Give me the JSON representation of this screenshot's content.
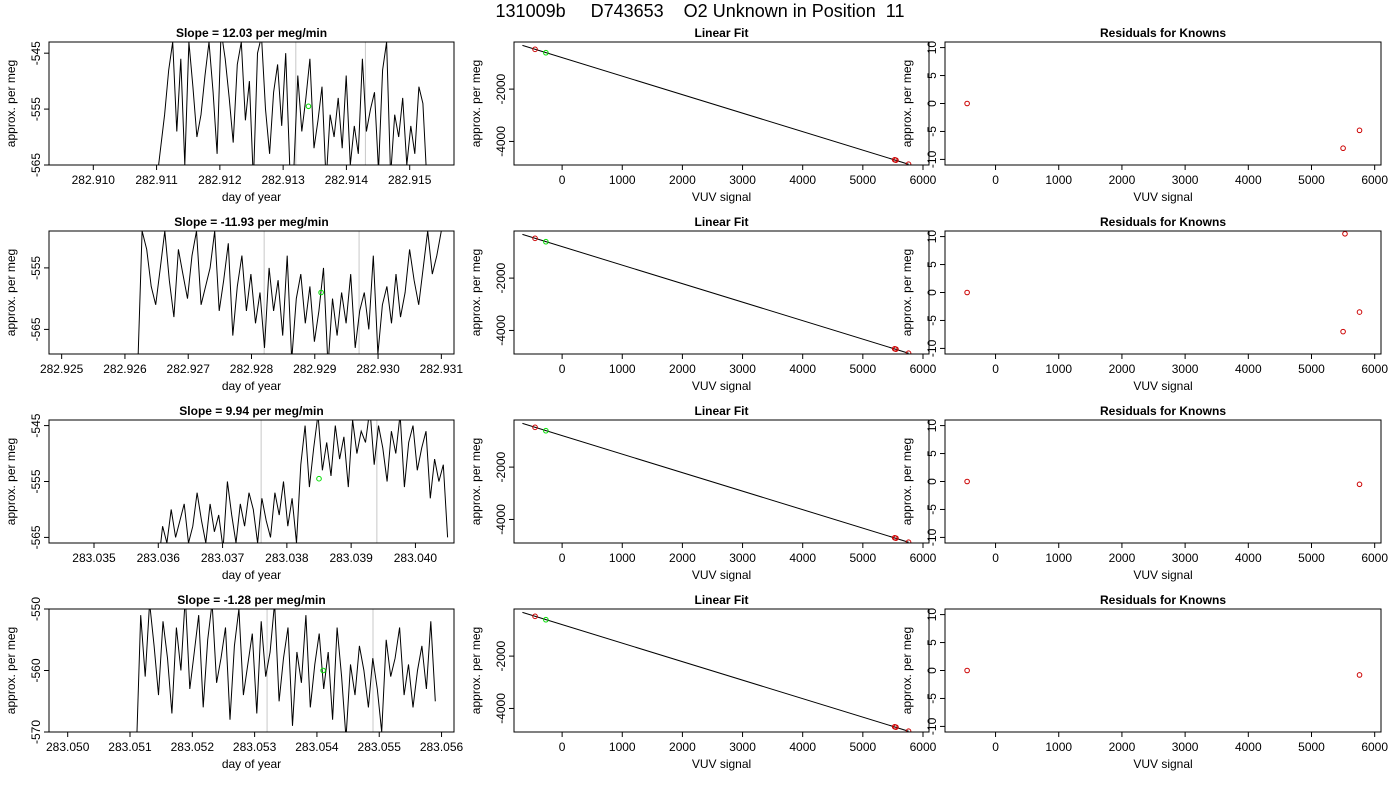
{
  "page": {
    "title": "131009b     D743653    O2 Unknown in Position  11"
  },
  "chart_data": [
    {
      "type": "line",
      "panel": "time",
      "row": 0,
      "title": "Slope =  12.03  per meg/min",
      "xlabel": "day of year",
      "ylabel": "approx. per meg",
      "xlim": [
        282.9093,
        282.9157
      ],
      "ylim": [
        -565,
        -543
      ],
      "xticks": [
        "282.910",
        "282.911",
        "282.912",
        "282.913",
        "282.914",
        "282.915"
      ],
      "xtick_values": [
        282.91,
        282.911,
        282.912,
        282.913,
        282.914,
        282.915
      ],
      "yticks": [
        "-565",
        "-555",
        "-545"
      ],
      "ytick_values": [
        -565,
        -555,
        -545
      ],
      "vlines": [
        282.9132,
        282.9143
      ],
      "marker": {
        "x": 282.9134,
        "y": -554.5,
        "color": "#00dd00"
      },
      "trace_start": 282.911,
      "trace_end": 282.9154,
      "series": [
        {
          "values": [
            -568,
            -562,
            -556,
            -548,
            -543,
            -559,
            -546,
            -565,
            -543,
            -551,
            -560,
            -556,
            -549,
            -543,
            -552,
            -563,
            -541,
            -546,
            -553,
            -561,
            -547,
            -543,
            -557,
            -550,
            -568,
            -545,
            -542,
            -555,
            -563,
            -552,
            -547,
            -558,
            -545,
            -565,
            -566,
            -549,
            -559,
            -553,
            -546,
            -562,
            -557,
            -551,
            -568,
            -556,
            -560,
            -553,
            -562,
            -549,
            -565,
            -558,
            -563,
            -546,
            -559,
            -555,
            -552,
            -566,
            -548,
            -543,
            -567,
            -556,
            -560,
            -553,
            -565,
            -558,
            -563,
            -551,
            -554,
            -568,
            -566,
            -571
          ]
        }
      ]
    },
    {
      "type": "scatter",
      "panel": "fit",
      "row": 0,
      "title": "Linear Fit",
      "xlabel": "VUV signal",
      "ylabel": "approx. per meg",
      "xlim": [
        -800,
        6100
      ],
      "ylim": [
        -4900,
        -200
      ],
      "xticks": [
        "0",
        "1000",
        "2000",
        "3000",
        "4000",
        "5000",
        "6000"
      ],
      "xtick_values": [
        0,
        1000,
        2000,
        3000,
        4000,
        5000,
        6000
      ],
      "yticks": [
        "-4000",
        "-2000"
      ],
      "ytick_values": [
        -4000,
        -2000
      ],
      "line": [
        [
          -660,
          -330
        ],
        [
          5760,
          -4870
        ]
      ],
      "knowns": [
        [
          -450,
          -480
        ],
        [
          5530,
          -4700
        ],
        [
          5550,
          -4715
        ],
        [
          5760,
          -4870
        ]
      ],
      "unknown": [
        [
          -270,
          -610
        ]
      ]
    },
    {
      "type": "scatter",
      "panel": "resid",
      "row": 0,
      "title": "Residuals for Knowns",
      "xlabel": "VUV signal",
      "ylabel": "approx. per meg",
      "xlim": [
        -800,
        6100
      ],
      "ylim": [
        -11,
        11
      ],
      "xticks": [
        "0",
        "1000",
        "2000",
        "3000",
        "4000",
        "5000",
        "6000"
      ],
      "xtick_values": [
        0,
        1000,
        2000,
        3000,
        4000,
        5000,
        6000
      ],
      "yticks": [
        "-10",
        "-5",
        "0",
        "5",
        "10"
      ],
      "ytick_values": [
        -10,
        -5,
        0,
        5,
        10
      ],
      "points": [
        [
          -450,
          0
        ],
        [
          5500,
          -8
        ],
        [
          5760,
          -4.8
        ]
      ]
    },
    {
      "type": "line",
      "panel": "time",
      "row": 1,
      "title": "Slope =  -11.93  per meg/min",
      "xlabel": "day of year",
      "ylabel": "approx. per meg",
      "xlim": [
        282.9248,
        282.9312
      ],
      "ylim": [
        -569,
        -549
      ],
      "xticks": [
        "282.925",
        "282.926",
        "282.927",
        "282.928",
        "282.929",
        "282.930",
        "282.931"
      ],
      "xtick_values": [
        282.925,
        282.926,
        282.927,
        282.928,
        282.929,
        282.93,
        282.931
      ],
      "yticks": [
        "-565",
        "-555"
      ],
      "ytick_values": [
        -565,
        -555
      ],
      "vlines": [
        282.9282,
        282.9297
      ],
      "marker": {
        "x": 282.9291,
        "y": -559,
        "color": "#00dd00"
      },
      "trace_start": 282.9262,
      "trace_end": 282.931,
      "series": [
        {
          "values": [
            -572,
            -549,
            -552,
            -558,
            -561,
            -555,
            -549,
            -557,
            -563,
            -552,
            -556,
            -560,
            -553,
            -549,
            -561,
            -558,
            -555,
            -549,
            -562,
            -557,
            -551,
            -566,
            -558,
            -553,
            -562,
            -556,
            -564,
            -559,
            -568,
            -555,
            -562,
            -557,
            -566,
            -553,
            -570,
            -560,
            -556,
            -564,
            -558,
            -567,
            -562,
            -555,
            -571,
            -560,
            -566,
            -559,
            -564,
            -556,
            -568,
            -562,
            -559,
            -565,
            -553,
            -569,
            -561,
            -558,
            -564,
            -556,
            -563,
            -559,
            -552,
            -557,
            -561,
            -555,
            -549,
            -556,
            -553,
            -549
          ]
        }
      ]
    },
    {
      "type": "scatter",
      "panel": "fit",
      "row": 1,
      "title": "Linear Fit",
      "xlabel": "VUV signal",
      "ylabel": "approx. per meg",
      "xlim": [
        -800,
        6100
      ],
      "ylim": [
        -4900,
        -200
      ],
      "xticks": [
        "0",
        "1000",
        "2000",
        "3000",
        "4000",
        "5000",
        "6000"
      ],
      "xtick_values": [
        0,
        1000,
        2000,
        3000,
        4000,
        5000,
        6000
      ],
      "yticks": [
        "-4000",
        "-2000"
      ],
      "ytick_values": [
        -4000,
        -2000
      ],
      "line": [
        [
          -660,
          -330
        ],
        [
          5760,
          -4870
        ]
      ],
      "knowns": [
        [
          -450,
          -480
        ],
        [
          5530,
          -4700
        ],
        [
          5550,
          -4715
        ],
        [
          5760,
          -4870
        ]
      ],
      "unknown": [
        [
          -270,
          -610
        ]
      ]
    },
    {
      "type": "scatter",
      "panel": "resid",
      "row": 1,
      "title": "Residuals for Knowns",
      "xlabel": "VUV signal",
      "ylabel": "approx. per meg",
      "xlim": [
        -800,
        6100
      ],
      "ylim": [
        -11,
        11
      ],
      "xticks": [
        "0",
        "1000",
        "2000",
        "3000",
        "4000",
        "5000",
        "6000"
      ],
      "xtick_values": [
        0,
        1000,
        2000,
        3000,
        4000,
        5000,
        6000
      ],
      "yticks": [
        "-10",
        "-5",
        "0",
        "5",
        "10"
      ],
      "ytick_values": [
        -10,
        -5,
        0,
        5,
        10
      ],
      "points": [
        [
          -450,
          0
        ],
        [
          5530,
          10.5
        ],
        [
          5500,
          -7
        ],
        [
          5760,
          -3.5
        ]
      ]
    },
    {
      "type": "line",
      "panel": "time",
      "row": 2,
      "title": "Slope =  9.94  per meg/min",
      "xlabel": "day of year",
      "ylabel": "approx. per meg",
      "xlim": [
        283.0343,
        283.0406
      ],
      "ylim": [
        -566,
        -544
      ],
      "xticks": [
        "283.035",
        "283.036",
        "283.037",
        "283.038",
        "283.039",
        "283.040"
      ],
      "xtick_values": [
        283.035,
        283.036,
        283.037,
        283.038,
        283.039,
        283.04
      ],
      "yticks": [
        "-565",
        "-555",
        "-545"
      ],
      "ytick_values": [
        -565,
        -555,
        -545
      ],
      "vlines": [
        283.0376,
        283.0394
      ],
      "marker": {
        "x": 283.0385,
        "y": -554.5,
        "color": "#00dd00"
      },
      "trace_start": 283.036,
      "trace_end": 283.0405,
      "series": [
        {
          "values": [
            -570,
            -563,
            -566,
            -560,
            -565,
            -562,
            -559,
            -566,
            -563,
            -557,
            -562,
            -566,
            -559,
            -564,
            -561,
            -567,
            -555,
            -561,
            -566,
            -559,
            -563,
            -557,
            -560,
            -566,
            -558,
            -562,
            -565,
            -557,
            -561,
            -555,
            -563,
            -558,
            -566,
            -552,
            -545,
            -556,
            -549,
            -543,
            -553,
            -548,
            -554,
            -545,
            -551,
            -547,
            -556,
            -544,
            -550,
            -546,
            -548,
            -542,
            -552,
            -545,
            -549,
            -555,
            -546,
            -550,
            -543,
            -556,
            -548,
            -545,
            -553,
            -549,
            -546,
            -558,
            -551,
            -555,
            -552,
            -565
          ]
        }
      ]
    },
    {
      "type": "scatter",
      "panel": "fit",
      "row": 2,
      "title": "Linear Fit",
      "xlabel": "VUV signal",
      "ylabel": "approx. per meg",
      "xlim": [
        -800,
        6100
      ],
      "ylim": [
        -4900,
        -200
      ],
      "xticks": [
        "0",
        "1000",
        "2000",
        "3000",
        "4000",
        "5000",
        "6000"
      ],
      "xtick_values": [
        0,
        1000,
        2000,
        3000,
        4000,
        5000,
        6000
      ],
      "yticks": [
        "-4000",
        "-2000"
      ],
      "ytick_values": [
        -4000,
        -2000
      ],
      "line": [
        [
          -660,
          -330
        ],
        [
          5760,
          -4870
        ]
      ],
      "knowns": [
        [
          -450,
          -480
        ],
        [
          5530,
          -4700
        ],
        [
          5550,
          -4715
        ],
        [
          5760,
          -4870
        ]
      ],
      "unknown": [
        [
          -270,
          -610
        ]
      ]
    },
    {
      "type": "scatter",
      "panel": "resid",
      "row": 2,
      "title": "Residuals for Knowns",
      "xlabel": "VUV signal",
      "ylabel": "approx. per meg",
      "xlim": [
        -800,
        6100
      ],
      "ylim": [
        -11,
        11
      ],
      "xticks": [
        "0",
        "1000",
        "2000",
        "3000",
        "4000",
        "5000",
        "6000"
      ],
      "xtick_values": [
        0,
        1000,
        2000,
        3000,
        4000,
        5000,
        6000
      ],
      "yticks": [
        "-10",
        "-5",
        "0",
        "5",
        "10"
      ],
      "ytick_values": [
        -10,
        -5,
        0,
        5,
        10
      ],
      "points": [
        [
          -450,
          0
        ],
        [
          5760,
          -0.5
        ]
      ]
    },
    {
      "type": "line",
      "panel": "time",
      "row": 3,
      "title": "Slope =  -1.28  per meg/min",
      "xlabel": "day of year",
      "ylabel": "approx. per meg",
      "xlim": [
        283.0497,
        283.0562
      ],
      "ylim": [
        -570,
        -550
      ],
      "xticks": [
        "283.050",
        "283.051",
        "283.052",
        "283.053",
        "283.054",
        "283.055",
        "283.056"
      ],
      "xtick_values": [
        283.05,
        283.051,
        283.052,
        283.053,
        283.054,
        283.055,
        283.056
      ],
      "yticks": [
        "-570",
        "-560",
        "-550"
      ],
      "ytick_values": [
        -570,
        -560,
        -550
      ],
      "vlines": [
        283.0532,
        283.0549
      ],
      "marker": {
        "x": 283.0541,
        "y": -560,
        "color": "#00dd00"
      },
      "trace_start": 283.0511,
      "trace_end": 283.0559,
      "series": [
        {
          "values": [
            -574,
            -551,
            -561,
            -549,
            -556,
            -564,
            -552,
            -558,
            -567,
            -553,
            -560,
            -548,
            -563,
            -557,
            -551,
            -566,
            -555,
            -549,
            -562,
            -558,
            -553,
            -568,
            -556,
            -550,
            -564,
            -559,
            -554,
            -567,
            -552,
            -561,
            -557,
            -549,
            -565,
            -558,
            -553,
            -569,
            -557,
            -562,
            -551,
            -566,
            -559,
            -554,
            -563,
            -557,
            -568,
            -553,
            -561,
            -571,
            -559,
            -564,
            -556,
            -560,
            -566,
            -558,
            -563,
            -570,
            -555,
            -561,
            -558,
            -553,
            -564,
            -559,
            -566,
            -560,
            -556,
            -563,
            -552,
            -565
          ]
        }
      ]
    },
    {
      "type": "scatter",
      "panel": "fit",
      "row": 3,
      "title": "Linear Fit",
      "xlabel": "VUV signal",
      "ylabel": "approx. per meg",
      "xlim": [
        -800,
        6100
      ],
      "ylim": [
        -4900,
        -200
      ],
      "xticks": [
        "0",
        "1000",
        "2000",
        "3000",
        "4000",
        "5000",
        "6000"
      ],
      "xtick_values": [
        0,
        1000,
        2000,
        3000,
        4000,
        5000,
        6000
      ],
      "yticks": [
        "-4000",
        "-2000"
      ],
      "ytick_values": [
        -4000,
        -2000
      ],
      "line": [
        [
          -660,
          -330
        ],
        [
          5760,
          -4870
        ]
      ],
      "knowns": [
        [
          -450,
          -480
        ],
        [
          5530,
          -4700
        ],
        [
          5550,
          -4715
        ],
        [
          5760,
          -4870
        ]
      ],
      "unknown": [
        [
          -270,
          -610
        ]
      ]
    },
    {
      "type": "scatter",
      "panel": "resid",
      "row": 3,
      "title": "Residuals for Knowns",
      "xlabel": "VUV signal",
      "ylabel": "approx. per meg",
      "xlim": [
        -800,
        6100
      ],
      "ylim": [
        -11,
        11
      ],
      "xticks": [
        "0",
        "1000",
        "2000",
        "3000",
        "4000",
        "5000",
        "6000"
      ],
      "xtick_values": [
        0,
        1000,
        2000,
        3000,
        4000,
        5000,
        6000
      ],
      "yticks": [
        "-10",
        "-5",
        "0",
        "5",
        "10"
      ],
      "ytick_values": [
        -10,
        -5,
        0,
        5,
        10
      ],
      "points": [
        [
          -450,
          0
        ],
        [
          5760,
          -0.8
        ]
      ]
    }
  ]
}
